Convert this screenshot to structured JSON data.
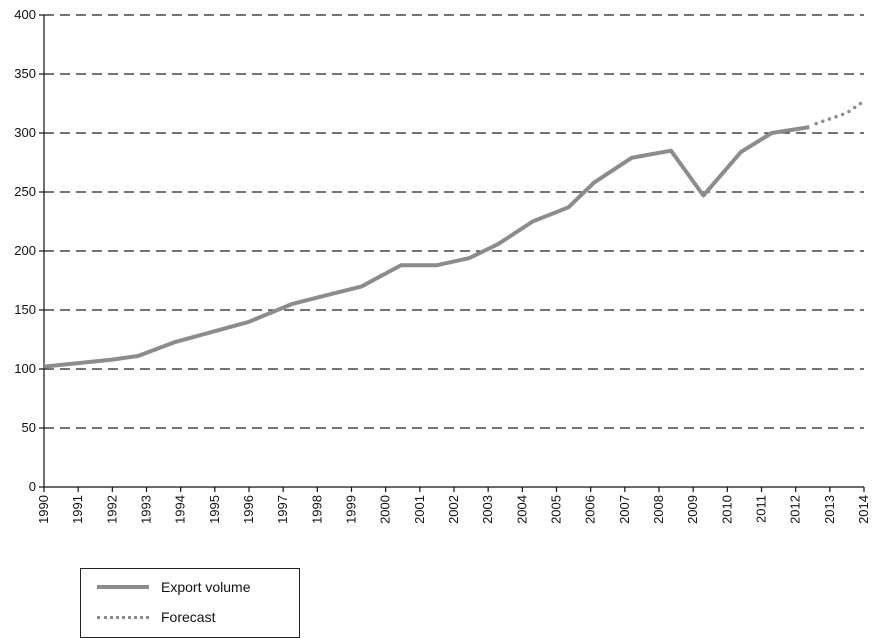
{
  "chart_data": {
    "type": "line",
    "title": "",
    "xlabel": "",
    "ylabel": "",
    "ylim": [
      0,
      400
    ],
    "yticks": [
      0,
      50,
      100,
      150,
      200,
      250,
      300,
      350,
      400
    ],
    "ytick_labels": [
      "0",
      "50",
      "100",
      "150",
      "200",
      "250",
      "300",
      "350",
      "400"
    ],
    "x_categories": [
      "1990",
      "1991",
      "1992",
      "1993",
      "1994",
      "1995",
      "1996",
      "1997",
      "1998",
      "1999",
      "2000",
      "2001",
      "2002",
      "2003",
      "2004",
      "2005",
      "2006",
      "2007",
      "2008",
      "2009",
      "2010",
      "2011",
      "2012",
      "2013",
      "2014"
    ],
    "grid": "horizontal dashed",
    "legend_position": "bottom-left",
    "series": [
      {
        "name": "Export volume",
        "style": "solid",
        "color": "#8c8c8c",
        "points": [
          [
            1990,
            102
          ],
          [
            1991,
            105
          ],
          [
            1992,
            108
          ],
          [
            1992.75,
            111
          ],
          [
            1993.85,
            123
          ],
          [
            1995,
            132
          ],
          [
            1996,
            140
          ],
          [
            1997.25,
            155
          ],
          [
            1998.2,
            162
          ],
          [
            1999.3,
            170
          ],
          [
            2000.45,
            188
          ],
          [
            2001.5,
            188
          ],
          [
            2002.45,
            194
          ],
          [
            2003.3,
            206
          ],
          [
            2004.3,
            225
          ],
          [
            2005.35,
            237
          ],
          [
            2006.1,
            258
          ],
          [
            2007.2,
            279
          ],
          [
            2008.35,
            285
          ],
          [
            2009.3,
            247
          ],
          [
            2010.4,
            284
          ],
          [
            2011.3,
            300
          ],
          [
            2012.4,
            305
          ]
        ]
      },
      {
        "name": "Forecast",
        "style": "dotted",
        "color": "#8c8c8c",
        "points": [
          [
            2012.6,
            308
          ],
          [
            2013.5,
            317
          ],
          [
            2014,
            327
          ]
        ]
      }
    ]
  },
  "legend": {
    "items": [
      {
        "label": "Export volume"
      },
      {
        "label": "Forecast"
      }
    ]
  }
}
